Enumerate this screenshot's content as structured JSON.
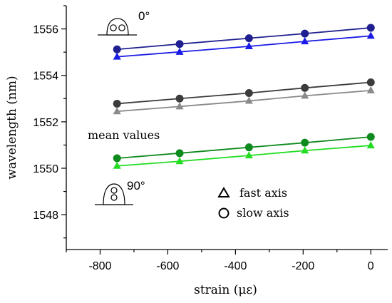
{
  "chart_data": {
    "type": "line",
    "xlabel": "strain (με)",
    "ylabel": "wavelength (nm)",
    "xlim": [
      -900,
      50
    ],
    "ylim": [
      1546.5,
      1557
    ],
    "xticks": [
      -800,
      -600,
      -400,
      -200,
      0
    ],
    "yticks": [
      1548,
      1550,
      1552,
      1554,
      1556
    ],
    "x": [
      -750,
      -565,
      -360,
      -195,
      0
    ],
    "series": [
      {
        "group": "0°",
        "marker": "circle",
        "color": "#1f1f8f",
        "values": [
          1555.12,
          1555.35,
          1555.6,
          1555.8,
          1556.05
        ]
      },
      {
        "group": "0°",
        "marker": "triangle",
        "color": "#1a1ae6",
        "values": [
          1554.8,
          1555.01,
          1555.25,
          1555.46,
          1555.7
        ]
      },
      {
        "group": "mean values",
        "marker": "circle",
        "color": "#3c3c3c",
        "values": [
          1552.78,
          1553.0,
          1553.24,
          1553.46,
          1553.7
        ]
      },
      {
        "group": "mean values",
        "marker": "triangle",
        "color": "#8a8a8a",
        "values": [
          1552.45,
          1552.66,
          1552.9,
          1553.12,
          1553.35
        ]
      },
      {
        "group": "90°",
        "marker": "circle",
        "color": "#0e8a1e",
        "values": [
          1550.43,
          1550.65,
          1550.9,
          1551.1,
          1551.35
        ]
      },
      {
        "group": "90°",
        "marker": "triangle",
        "color": "#22dd22",
        "values": [
          1550.1,
          1550.3,
          1550.55,
          1550.76,
          1550.98
        ]
      }
    ],
    "annotations": {
      "angle_0": "0°",
      "angle_90": "90°",
      "mean_values": "mean values"
    },
    "legend": {
      "placement": "bottom-right",
      "entries": [
        {
          "marker": "triangle",
          "label": "fast axis"
        },
        {
          "marker": "circle",
          "label": "slow axis"
        }
      ]
    },
    "grid": false
  }
}
